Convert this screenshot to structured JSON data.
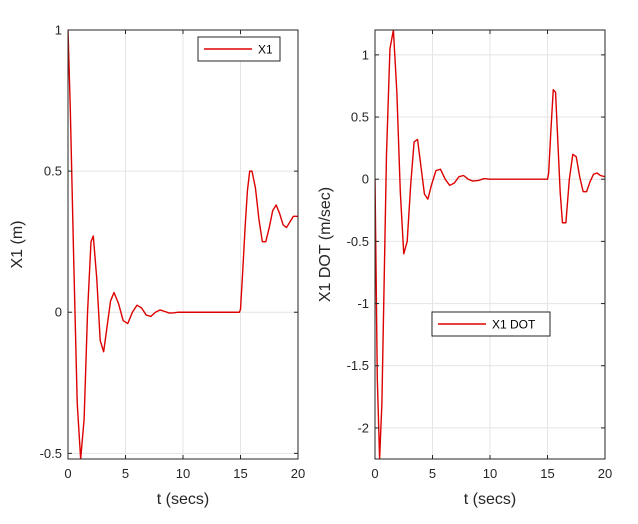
{
  "chart_data": [
    {
      "type": "line",
      "xlabel": "t (secs)",
      "ylabel": "X1 (m)",
      "xlim": [
        0,
        20
      ],
      "ylim": [
        -0.52,
        1.0
      ],
      "xticks": [
        0,
        5,
        10,
        15,
        20
      ],
      "yticks": [
        -0.5,
        0,
        0.5,
        1
      ],
      "xtick_labels": [
        "0",
        "5",
        "10",
        "15",
        "20"
      ],
      "ytick_labels": [
        "-0.5",
        "0",
        "0.5",
        "1"
      ],
      "grid": true,
      "legend": "top-right",
      "series": [
        {
          "name": "X1",
          "color": "#dd0000",
          "x": [
            0,
            0.2,
            0.5,
            0.8,
            1.1,
            1.4,
            1.7,
            2.0,
            2.2,
            2.5,
            2.8,
            3.1,
            3.4,
            3.7,
            4.0,
            4.4,
            4.8,
            5.2,
            5.6,
            6.0,
            6.4,
            6.8,
            7.2,
            7.6,
            8.0,
            8.4,
            8.8,
            9.2,
            9.6,
            10.0,
            11.0,
            12.0,
            13.0,
            14.0,
            14.9,
            15.0,
            15.2,
            15.4,
            15.6,
            15.8,
            16.0,
            16.3,
            16.6,
            16.9,
            17.2,
            17.5,
            17.8,
            18.1,
            18.4,
            18.7,
            19.0,
            19.3,
            19.6,
            20.0
          ],
          "y": [
            1.0,
            0.72,
            0.18,
            -0.32,
            -0.52,
            -0.38,
            0.0,
            0.25,
            0.27,
            0.12,
            -0.1,
            -0.14,
            -0.05,
            0.04,
            0.07,
            0.03,
            -0.03,
            -0.04,
            0.0,
            0.025,
            0.015,
            -0.01,
            -0.015,
            0.0,
            0.008,
            0.003,
            -0.003,
            -0.002,
            0.0,
            0.0,
            0.0,
            0.0,
            0.0,
            0.0,
            0.0,
            0.01,
            0.15,
            0.3,
            0.43,
            0.5,
            0.5,
            0.44,
            0.33,
            0.25,
            0.25,
            0.3,
            0.36,
            0.38,
            0.35,
            0.31,
            0.3,
            0.32,
            0.34,
            0.34
          ]
        }
      ]
    },
    {
      "type": "line",
      "xlabel": "t (secs)",
      "ylabel": "X1 DOT (m/sec)",
      "xlim": [
        0,
        20
      ],
      "ylim": [
        -2.25,
        1.2
      ],
      "xticks": [
        0,
        5,
        10,
        15,
        20
      ],
      "yticks": [
        -2,
        -1.5,
        -1,
        -0.5,
        0,
        0.5,
        1
      ],
      "xtick_labels": [
        "0",
        "5",
        "10",
        "15",
        "20"
      ],
      "ytick_labels": [
        "-2",
        "-1.5",
        "-1",
        "-0.5",
        "0",
        "0.5",
        "1"
      ],
      "grid": true,
      "legend": "center",
      "series": [
        {
          "name": "X1 DOT",
          "color": "#dd0000",
          "x": [
            0,
            0.2,
            0.4,
            0.6,
            0.8,
            1.0,
            1.3,
            1.6,
            1.9,
            2.2,
            2.5,
            2.8,
            3.1,
            3.4,
            3.7,
            4.0,
            4.3,
            4.6,
            4.9,
            5.3,
            5.7,
            6.1,
            6.5,
            6.9,
            7.3,
            7.7,
            8.1,
            8.5,
            9.0,
            9.5,
            10.0,
            11.0,
            12.0,
            13.0,
            14.0,
            15.0,
            15.1,
            15.3,
            15.5,
            15.7,
            15.9,
            16.1,
            16.3,
            16.6,
            16.9,
            17.2,
            17.5,
            17.8,
            18.1,
            18.4,
            18.7,
            19.0,
            19.3,
            19.6,
            20.0
          ],
          "y": [
            0,
            -1.6,
            -2.25,
            -1.8,
            -0.8,
            0.2,
            1.05,
            1.2,
            0.7,
            -0.1,
            -0.6,
            -0.5,
            -0.05,
            0.3,
            0.32,
            0.1,
            -0.12,
            -0.16,
            -0.05,
            0.07,
            0.08,
            0.0,
            -0.05,
            -0.03,
            0.02,
            0.03,
            0.0,
            -0.015,
            -0.01,
            0.005,
            0.0,
            0.0,
            0.0,
            0.0,
            0.0,
            0.0,
            0.05,
            0.4,
            0.72,
            0.7,
            0.3,
            -0.1,
            -0.35,
            -0.35,
            0.0,
            0.2,
            0.18,
            0.02,
            -0.1,
            -0.1,
            -0.02,
            0.04,
            0.05,
            0.03,
            0.02
          ]
        }
      ]
    }
  ]
}
